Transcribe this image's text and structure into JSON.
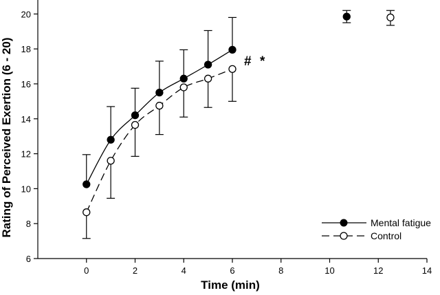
{
  "chart_data": {
    "type": "line",
    "xlabel": "Time (min)",
    "ylabel": "Rating of Perceived Exertion (6 - 20)",
    "xlim": [
      -2,
      14
    ],
    "ylim": [
      6,
      20.8
    ],
    "xticks": [
      0,
      2,
      4,
      6,
      8,
      10,
      12,
      14
    ],
    "yticks": [
      6,
      8,
      10,
      12,
      14,
      16,
      18,
      20
    ],
    "grid": false,
    "legend_position": "bottom-right",
    "annotations": [
      "#",
      "*"
    ],
    "series": [
      {
        "name": "Mental fatigue",
        "marker": "filled-circle",
        "line_style": "solid",
        "color": "#000000",
        "x": [
          0,
          1,
          2,
          3,
          4,
          5,
          6
        ],
        "y": [
          10.25,
          12.8,
          14.2,
          15.5,
          16.3,
          17.1,
          17.95
        ],
        "error_upper": [
          11.95,
          14.7,
          15.75,
          17.3,
          17.95,
          19.05,
          19.8
        ]
      },
      {
        "name": "Control",
        "marker": "open-circle",
        "line_style": "dashed",
        "color": "#000000",
        "x": [
          0,
          1,
          2,
          3,
          4,
          5,
          6
        ],
        "y": [
          8.65,
          11.6,
          13.65,
          14.75,
          15.8,
          16.3,
          16.85
        ],
        "error_lower": [
          7.15,
          9.45,
          11.85,
          13.1,
          14.1,
          14.65,
          15.0
        ]
      },
      {
        "name": "Mental fatigue",
        "marker": "filled-circle",
        "line_style": "none",
        "color": "#000000",
        "x": [
          10.7
        ],
        "y": [
          19.85
        ],
        "error_upper": [
          20.2
        ],
        "error_lower": [
          19.5
        ]
      },
      {
        "name": "Control",
        "marker": "open-circle",
        "line_style": "none",
        "color": "#000000",
        "x": [
          12.5
        ],
        "y": [
          19.8
        ],
        "error_upper": [
          20.2
        ],
        "error_lower": [
          19.35
        ]
      }
    ]
  }
}
